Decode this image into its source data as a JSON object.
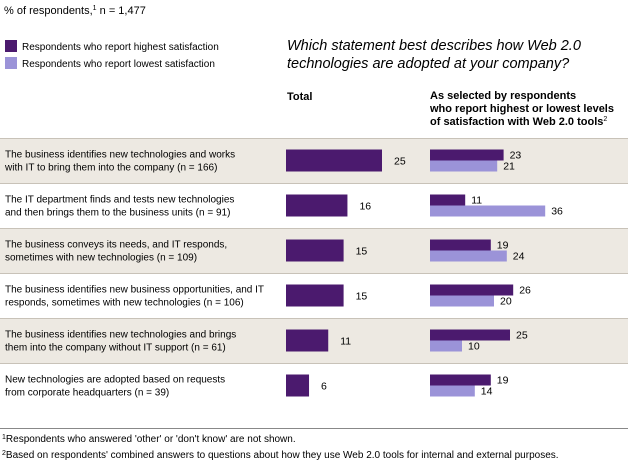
{
  "chart_data": {
    "type": "bar",
    "orientation": "horizontal",
    "unit_note": "% of respondents,",
    "unit_note_sup": "1",
    "unit_note_n": "n = 1,477",
    "question_line1": "Which statement best describes how Web 2.0",
    "question_line2": "technologies are adopted at your company?",
    "legend": [
      {
        "label": "Respondents who report highest satisfaction",
        "color": "#4b1a6e"
      },
      {
        "label": "Respondents who report lowest satisfaction",
        "color": "#9b93d8"
      }
    ],
    "column_total": "Total",
    "column_selected_line1": "As selected by respondents",
    "column_selected_line2": "who report highest or lowest levels",
    "column_selected_line3": "of satisfaction with Web 2.0 tools",
    "column_selected_sup": "2",
    "categories": [
      [
        "The business identifies new technologies and works",
        "with IT to bring them into the company (n = 166)"
      ],
      [
        "The IT department finds and tests new technologies",
        "and then brings them to the business units (n = 91)"
      ],
      [
        "The business conveys its needs, and IT responds,",
        "sometimes with new technologies (n = 109)"
      ],
      [
        "The business identifies new business opportunities, and IT",
        "responds, sometimes with new technologies (n = 106)"
      ],
      [
        "The business identifies new technologies and brings",
        "them into the company without IT support (n = 61)"
      ],
      [
        "New technologies are adopted based on requests",
        "from corporate headquarters (n = 39)"
      ]
    ],
    "series": [
      {
        "name": "Total",
        "values": [
          25,
          16,
          15,
          15,
          11,
          6
        ],
        "color": "#4b1a6e"
      },
      {
        "name": "Respondents who report highest satisfaction",
        "values": [
          23,
          11,
          19,
          26,
          25,
          19
        ],
        "color": "#4b1a6e"
      },
      {
        "name": "Respondents who report lowest satisfaction",
        "values": [
          21,
          36,
          24,
          20,
          10,
          14
        ],
        "color": "#9b93d8"
      }
    ],
    "footnotes": [
      {
        "mark": "1",
        "text": "Respondents who answered 'other' or 'don't know' are not shown."
      },
      {
        "mark": "2",
        "text": "Based on respondents' combined answers to questions about how they use Web 2.0 tools for internal and external purposes."
      }
    ],
    "colors": {
      "dark": "#4b1a6e",
      "light": "#9b93d8",
      "shade": "#ede9e2"
    }
  }
}
